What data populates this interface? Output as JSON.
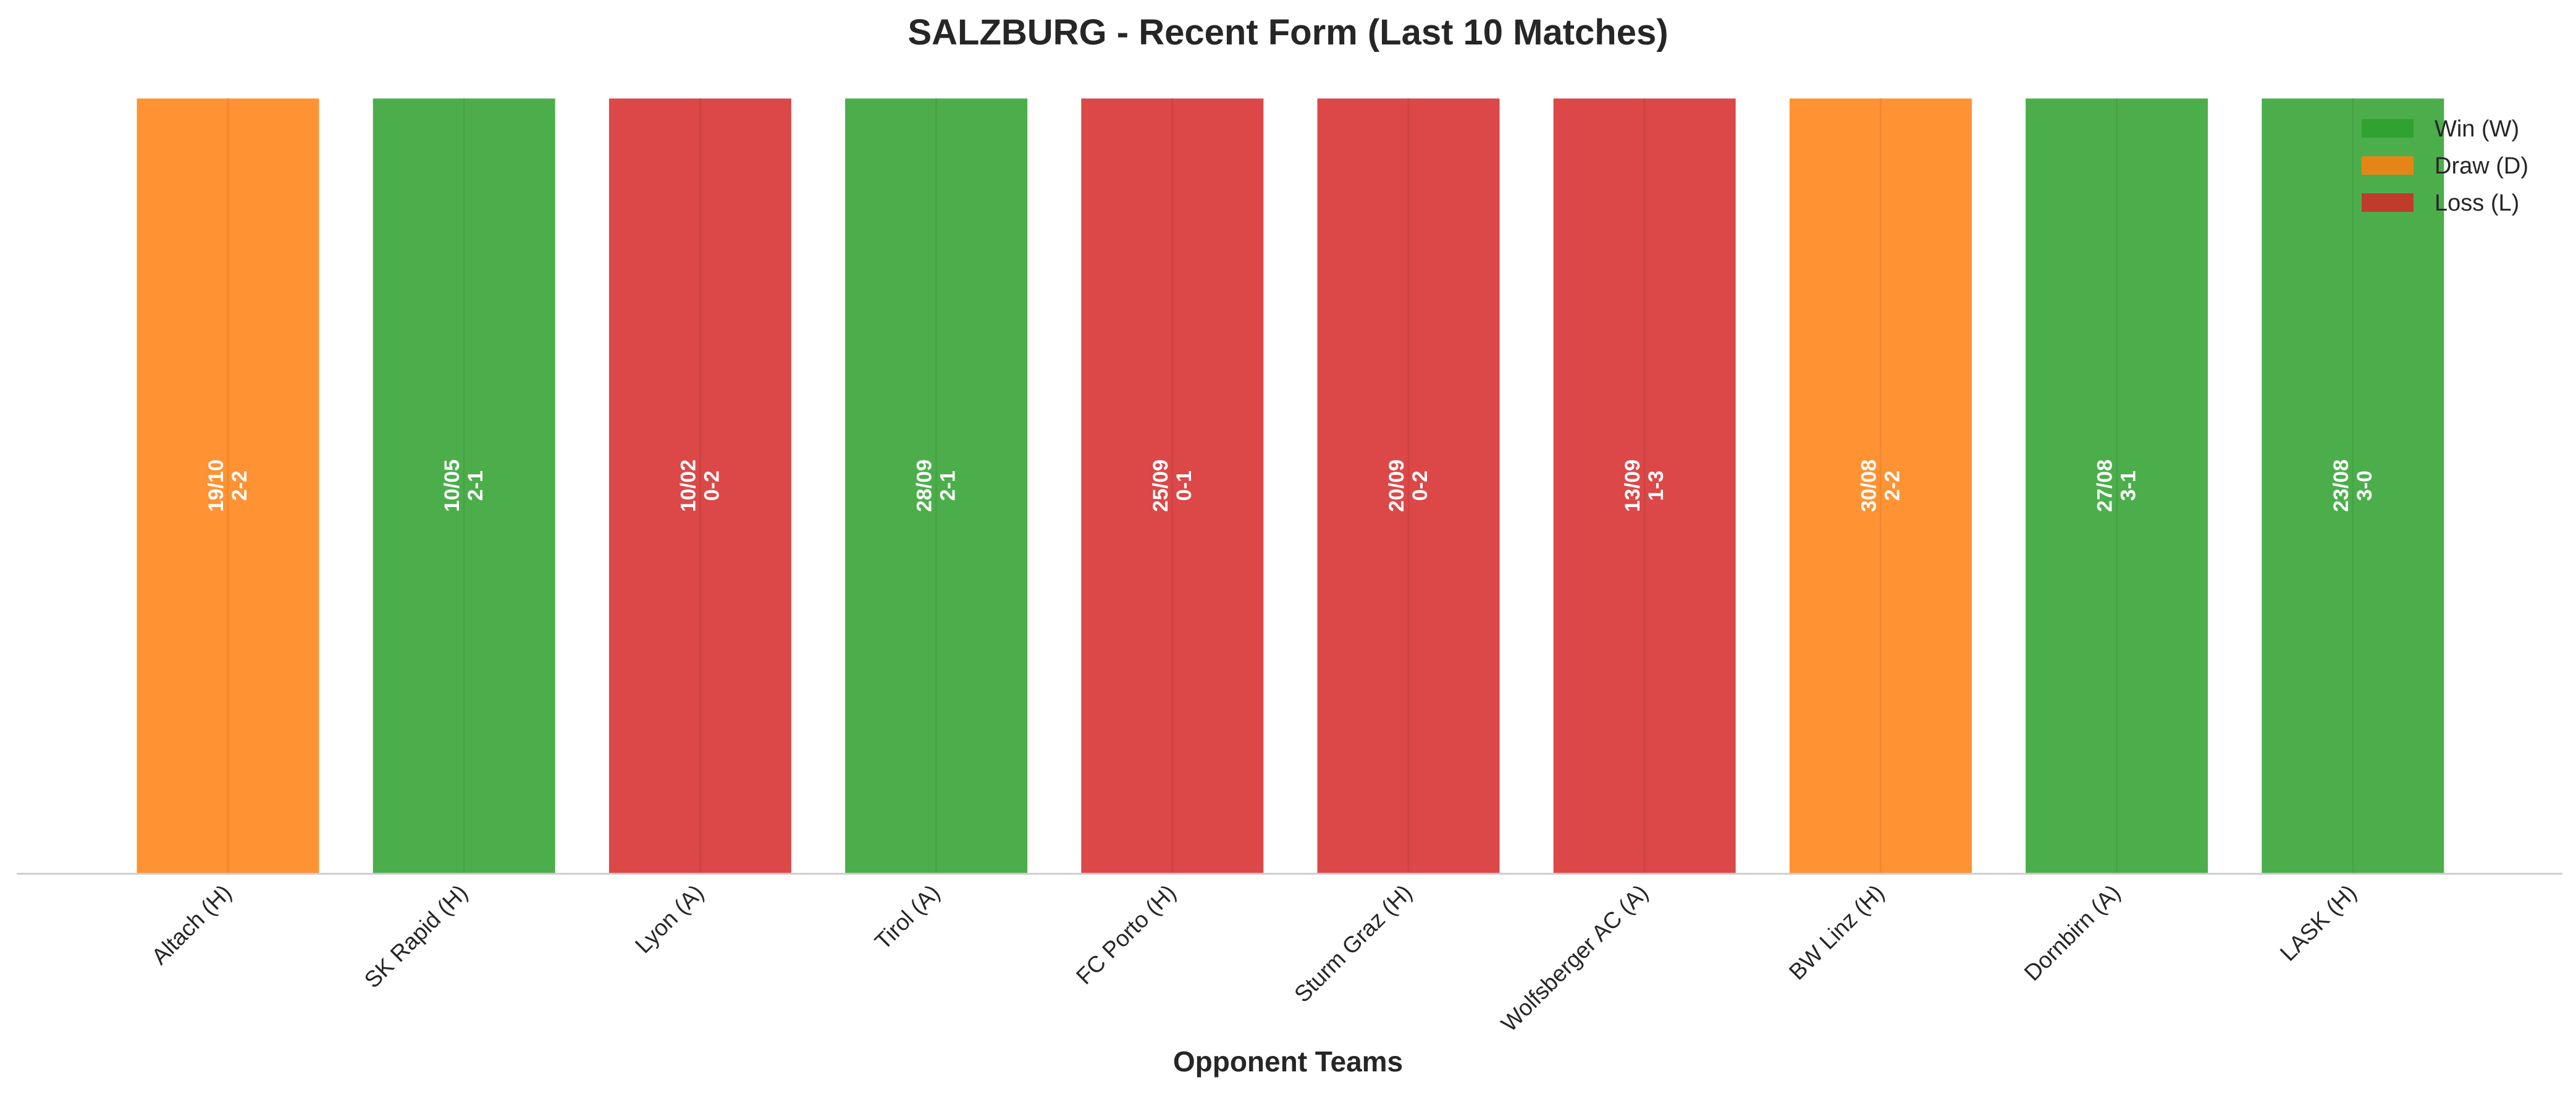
{
  "chart_data": {
    "type": "bar",
    "title": "SALZBURG - Recent Form (Last 10 Matches)",
    "xlabel": "Opponent Teams",
    "ylabel": "",
    "categories": [
      "Altach (H)",
      "SK Rapid (H)",
      "Lyon (A)",
      "Tirol (A)",
      "FC Porto (H)",
      "Sturm Graz (H)",
      "Wolfsberger AC (A)",
      "BW Linz (H)",
      "Dornbirn (A)",
      "LASK (H)"
    ],
    "values": [
      1,
      1,
      1,
      1,
      1,
      1,
      1,
      1,
      1,
      1
    ],
    "results": [
      "D",
      "W",
      "L",
      "W",
      "L",
      "L",
      "L",
      "D",
      "W",
      "W"
    ],
    "dates": [
      "19/10",
      "10/05",
      "10/02",
      "28/09",
      "25/09",
      "20/09",
      "13/09",
      "30/08",
      "27/08",
      "23/08"
    ],
    "scores": [
      "2-2",
      "2-1",
      "0-2",
      "2-1",
      "0-1",
      "0-2",
      "1-3",
      "2-2",
      "3-1",
      "3-0"
    ],
    "ylim": [
      0,
      1
    ],
    "grid": false,
    "legend": {
      "placement": "top-right",
      "entries": [
        {
          "key": "W",
          "label": "Win (W)"
        },
        {
          "key": "D",
          "label": "Draw (D)"
        },
        {
          "key": "L",
          "label": "Loss (L)"
        }
      ]
    },
    "colors": {
      "W": "#2ca02c",
      "D": "#ff7f0e",
      "L": "#d62728"
    }
  }
}
